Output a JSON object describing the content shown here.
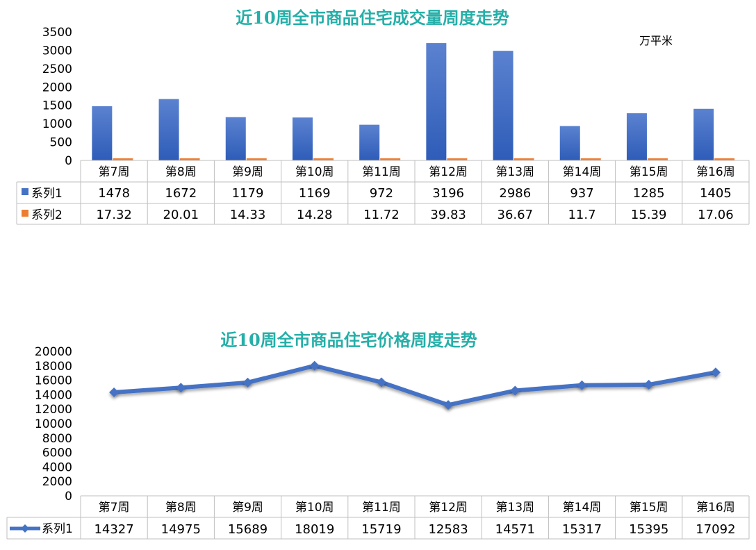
{
  "colors": {
    "title": "#25AFA8",
    "series1": "#4472C4",
    "series2": "#ED7D31",
    "grid": "#BFBFBF",
    "text": "#000000"
  },
  "chart_data": [
    {
      "type": "bar",
      "title": "近10周全市商品住宅成交量周度走势",
      "unit": "万平米",
      "categories": [
        "第7周",
        "第8周",
        "第9周",
        "第10周",
        "第11周",
        "第12周",
        "第13周",
        "第14周",
        "第15周",
        "第16周"
      ],
      "series": [
        {
          "name": "系列1",
          "values": [
            1478,
            1672,
            1179,
            1169,
            972,
            3196,
            2986,
            937,
            1285,
            1405
          ],
          "labels": [
            "1478",
            "1672",
            "1179",
            "1169",
            "972",
            "3196",
            "2986",
            "937",
            "1285",
            "1405"
          ]
        },
        {
          "name": "系列2",
          "values": [
            17.32,
            20.01,
            14.33,
            14.28,
            11.72,
            39.83,
            36.67,
            11.7,
            15.39,
            17.06
          ],
          "labels": [
            "17.32",
            "20.01",
            "14.33",
            "14.28",
            "11.72",
            "39.83",
            "36.67",
            "11.7",
            "15.39",
            "17.06"
          ]
        }
      ],
      "ylim": [
        0,
        3500
      ],
      "yticks": [
        "0",
        "500",
        "1000",
        "1500",
        "2000",
        "2500",
        "3000",
        "3500"
      ],
      "yticks_values": [
        0,
        500,
        1000,
        1500,
        2000,
        2500,
        3000,
        3500
      ],
      "data_table": true,
      "grid": false
    },
    {
      "type": "line",
      "title": "近10周全市商品住宅价格周度走势",
      "categories": [
        "第7周",
        "第8周",
        "第9周",
        "第10周",
        "第11周",
        "第12周",
        "第13周",
        "第14周",
        "第15周",
        "第16周"
      ],
      "series": [
        {
          "name": "系列1",
          "values": [
            14327,
            14975,
            15689,
            18019,
            15719,
            12583,
            14571,
            15317,
            15395,
            17092
          ],
          "labels": [
            "14327",
            "14975",
            "15689",
            "18019",
            "15719",
            "12583",
            "14571",
            "15317",
            "15395",
            "17092"
          ]
        }
      ],
      "ylim": [
        0,
        20000
      ],
      "yticks": [
        "0",
        "2000",
        "4000",
        "6000",
        "8000",
        "10000",
        "12000",
        "14000",
        "16000",
        "18000",
        "20000"
      ],
      "yticks_values": [
        0,
        2000,
        4000,
        6000,
        8000,
        10000,
        12000,
        14000,
        16000,
        18000,
        20000
      ],
      "data_table": true,
      "grid": false
    }
  ]
}
